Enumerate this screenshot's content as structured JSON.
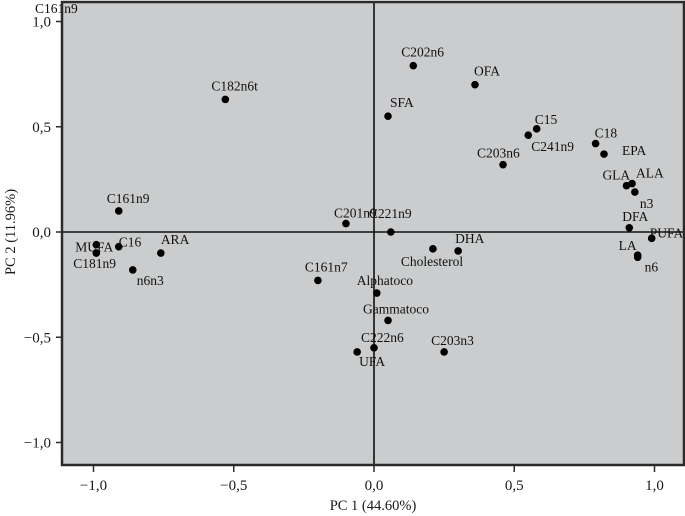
{
  "chart_data": {
    "type": "scatter",
    "title": "",
    "xlabel": "PC 1 (44.60%)",
    "ylabel": "PC 2 (11.96%)",
    "xlim": [
      -1.11,
      1.11
    ],
    "ylim": [
      -1.11,
      1.1
    ],
    "x_ticks": [
      -1.0,
      -0.5,
      0.0,
      0.5,
      1.0
    ],
    "x_tick_labels": [
      "−1,0",
      "−0,5",
      "0,0",
      "0,5",
      "1,0"
    ],
    "y_ticks": [
      1.0,
      0.5,
      0.0,
      -0.5,
      -1.0
    ],
    "y_tick_labels": [
      "1,0",
      "0,5",
      "0,0",
      "−0,5",
      "−1,0"
    ],
    "grid": false,
    "reference_lines": {
      "x": 0,
      "y": 0
    },
    "background_color": "#cbcccd",
    "point_color": "#000000",
    "annotations": [
      {
        "text": "C161n9",
        "x": -1.11,
        "y": 1.07,
        "note": "label at top-left corner without visible point"
      }
    ],
    "points": [
      {
        "label": "C182n6t",
        "x": -0.53,
        "y": 0.63
      },
      {
        "label": "C202n6",
        "x": 0.14,
        "y": 0.79
      },
      {
        "label": "OFA",
        "x": 0.36,
        "y": 0.7
      },
      {
        "label": "SFA",
        "x": 0.05,
        "y": 0.55
      },
      {
        "label": "C15",
        "x": 0.58,
        "y": 0.49
      },
      {
        "label": "C241n9",
        "x": 0.55,
        "y": 0.46
      },
      {
        "label": "C203n6",
        "x": 0.46,
        "y": 0.32
      },
      {
        "label": "C18",
        "x": 0.79,
        "y": 0.42
      },
      {
        "label": "EPA",
        "x": 0.82,
        "y": 0.37
      },
      {
        "label": "GLA",
        "x": 0.9,
        "y": 0.22
      },
      {
        "label": "ALA",
        "x": 0.92,
        "y": 0.23
      },
      {
        "label": "n3",
        "x": 0.93,
        "y": 0.19
      },
      {
        "label": "DFA",
        "x": 0.91,
        "y": 0.02
      },
      {
        "label": "PUFA",
        "x": 0.99,
        "y": -0.03
      },
      {
        "label": "LA",
        "x": 0.94,
        "y": -0.11
      },
      {
        "label": "n6",
        "x": 0.94,
        "y": -0.12
      },
      {
        "label": "C161n9",
        "x": -0.91,
        "y": 0.1
      },
      {
        "label": "MUFA",
        "x": -0.99,
        "y": -0.06
      },
      {
        "label": "C181n9",
        "x": -0.99,
        "y": -0.1
      },
      {
        "label": "C16",
        "x": -0.91,
        "y": -0.07
      },
      {
        "label": "ARA",
        "x": -0.76,
        "y": -0.1
      },
      {
        "label": "n6n3",
        "x": -0.86,
        "y": -0.18
      },
      {
        "label": "C201n9",
        "x": -0.1,
        "y": 0.04
      },
      {
        "label": "C221n9",
        "x": 0.06,
        "y": 0.0
      },
      {
        "label": "Cholesterol",
        "x": 0.21,
        "y": -0.08
      },
      {
        "label": "DHA",
        "x": 0.3,
        "y": -0.09
      },
      {
        "label": "C161n7",
        "x": -0.2,
        "y": -0.23
      },
      {
        "label": "Alphatoco",
        "x": 0.01,
        "y": -0.29
      },
      {
        "label": "Gammatoco",
        "x": 0.05,
        "y": -0.42
      },
      {
        "label": "C222n6",
        "x": 0.0,
        "y": -0.55
      },
      {
        "label": "UFA",
        "x": -0.06,
        "y": -0.57
      },
      {
        "label": "C203n3",
        "x": 0.25,
        "y": -0.57
      }
    ]
  },
  "labels": {
    "C182n6t": {
      "dx": -14,
      "dy": -9
    },
    "C202n6": {
      "dx": -12,
      "dy": -9
    },
    "OFA": {
      "dx": -1,
      "dy": -9
    },
    "SFA": {
      "dx": 2,
      "dy": -9
    },
    "C15": {
      "dx": -2,
      "dy": -5
    },
    "C241n9": {
      "dx": 3,
      "dy": 16
    },
    "C203n6": {
      "dx": -26,
      "dy": -7
    },
    "C18": {
      "dx": -1,
      "dy": -6
    },
    "EPA": {
      "dx": 18,
      "dy": 1
    },
    "GLA": {
      "dx": -24,
      "dy": -6
    },
    "ALA": {
      "dx": 4,
      "dy": -6
    },
    "n3": {
      "dx": 5,
      "dy": 16
    },
    "DFA": {
      "dx": -7,
      "dy": -7
    },
    "PUFA": {
      "dx": -2,
      "dy": -1
    },
    "LA": {
      "dx": -19,
      "dy": -5
    },
    "n6": {
      "dx": 7,
      "dy": 14
    },
    "C161n9": {
      "dx": -12,
      "dy": -8
    },
    "MUFA": {
      "dx": -21,
      "dy": 7
    },
    "C181n9": {
      "dx": -23,
      "dy": 15
    },
    "C16": {
      "dx": 0,
      "dy": 0
    },
    "ARA": {
      "dx": 0,
      "dy": -9
    },
    "n6n3": {
      "dx": 4,
      "dy": 15
    },
    "C201n9": {
      "dx": -12,
      "dy": -6
    },
    "C221n9": {
      "dx": -22,
      "dy": -14
    },
    "Cholesterol": {
      "dx": -32,
      "dy": 17
    },
    "DHA": {
      "dx": -3,
      "dy": -8
    },
    "C161n7": {
      "dx": -13,
      "dy": -9
    },
    "Alphatoco": {
      "dx": -20,
      "dy": -8
    },
    "Gammatoco": {
      "dx": -25,
      "dy": -7
    },
    "C222n6": {
      "dx": -13,
      "dy": -6
    },
    "UFA": {
      "dx": 2,
      "dy": 14
    },
    "C203n3": {
      "dx": -13,
      "dy": -7
    }
  }
}
